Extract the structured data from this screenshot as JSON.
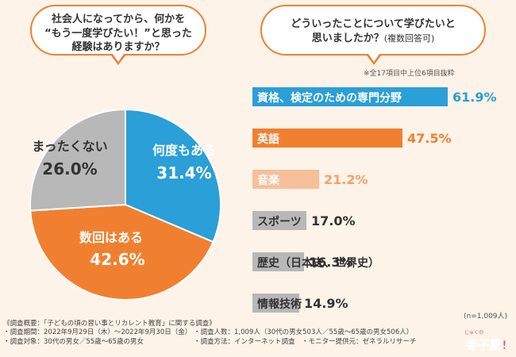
{
  "question1": {
    "lines": [
      "社会人になってから、何かを",
      "“もう一度学びたい！”と思った",
      "経験はありますか？"
    ]
  },
  "question2": {
    "line1": "どういったことについて学びたいと",
    "line2": "思いましたか？",
    "line2_small": "(複数回答可)"
  },
  "bar_note": "※全17項目中上位6項目抜粋",
  "n_note": "(n=1,009人)",
  "chart_data": [
    {
      "type": "pie",
      "title": "社会人になってから、何かを“もう一度学びたい！”と思った経験はありますか？",
      "slices": [
        {
          "label": "何度もある",
          "value": 31.4,
          "value_text": "31.4%",
          "color": "#2a9fd8"
        },
        {
          "label": "数回はある",
          "value": 42.6,
          "value_text": "42.6%",
          "color": "#f08030"
        },
        {
          "label": "まったくない",
          "value": 26.0,
          "value_text": "26.0%",
          "color": "#b8b8b8"
        }
      ]
    },
    {
      "type": "bar",
      "orientation": "horizontal",
      "title": "どういったことについて学びたいと思いましたか？(複数回答可)",
      "categories": [
        "資格、検定のための専門分野",
        "英語",
        "音楽",
        "スポーツ",
        "歴史（日本史、世界史）",
        "情報技術"
      ],
      "values": [
        61.9,
        47.5,
        21.2,
        17.0,
        16.3,
        14.9
      ],
      "value_labels": [
        "61.9%",
        "47.5%",
        "21.2%",
        "17.0%",
        "16.3%",
        "14.9%"
      ],
      "colors": [
        "#2a9fd8",
        "#f08030",
        "#f6c09a",
        "#b8b8b8",
        "#b8b8b8",
        "#b8b8b8"
      ],
      "label_colors": [
        "#ffffff",
        "#ffffff",
        "#ffffff",
        "#333333",
        "#333333",
        "#333333"
      ],
      "value_colors": [
        "#2a9fd8",
        "#f08030",
        "#f6a06a",
        "#333333",
        "#333333",
        "#333333"
      ],
      "xlim": [
        0,
        61.9
      ]
    }
  ],
  "survey": {
    "title": "《調査概要：「子どもの頃の習い事とリカレント教育」に関する調査》",
    "period": "・調査期間：2022年9月29日（木）～2022年9月30日（金）",
    "count": "・調査人数：1,009人（30代の男女503人／55歳～65歳の男女506人）",
    "target": "・調査対象：30代の男女／55歳～65歳の男女",
    "method": "・調査方法：インターネット調査",
    "provider": "・モニター提供元：ゼネラルリサーチ"
  },
  "logo": {
    "text": "寺子屋!",
    "small": "じゅくの"
  }
}
